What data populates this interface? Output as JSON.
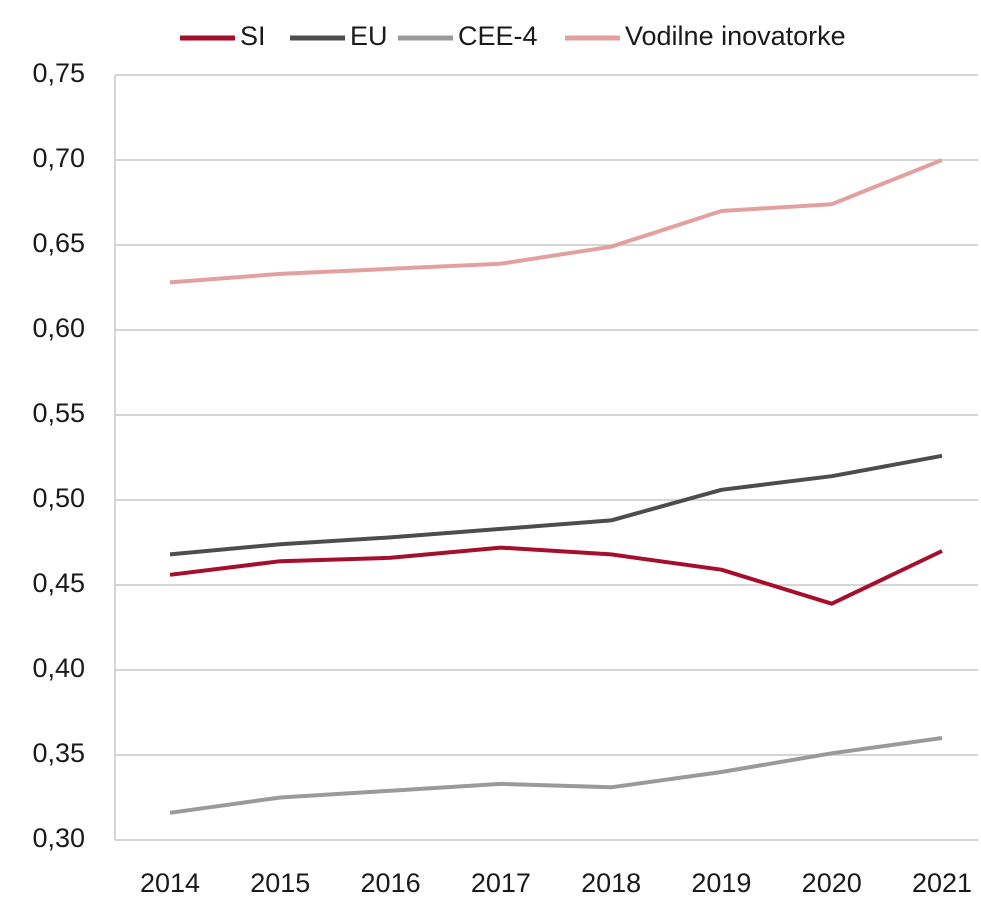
{
  "chart_data": {
    "type": "line",
    "categories": [
      "2014",
      "2015",
      "2016",
      "2017",
      "2018",
      "2019",
      "2020",
      "2021"
    ],
    "series": [
      {
        "name": "SI",
        "color": "#a50f2d",
        "values": [
          0.456,
          0.464,
          0.466,
          0.472,
          0.468,
          0.459,
          0.439,
          0.47
        ]
      },
      {
        "name": "EU",
        "color": "#4d4d4d",
        "values": [
          0.468,
          0.474,
          0.478,
          0.483,
          0.488,
          0.506,
          0.514,
          0.526
        ]
      },
      {
        "name": "CEE-4",
        "color": "#9a9a9a",
        "values": [
          0.316,
          0.325,
          0.329,
          0.333,
          0.331,
          0.34,
          0.351,
          0.36
        ]
      },
      {
        "name": "Vodilne inovatorke",
        "color": "#e3a0a0",
        "values": [
          0.628,
          0.633,
          0.636,
          0.639,
          0.649,
          0.67,
          0.674,
          0.7
        ]
      }
    ],
    "ylim": [
      0.3,
      0.75
    ],
    "yticks": [
      {
        "value": 0.3,
        "label": "0,30"
      },
      {
        "value": 0.35,
        "label": "0,35"
      },
      {
        "value": 0.4,
        "label": "0,40"
      },
      {
        "value": 0.45,
        "label": "0,45"
      },
      {
        "value": 0.5,
        "label": "0,50"
      },
      {
        "value": 0.55,
        "label": "0,55"
      },
      {
        "value": 0.6,
        "label": "0,60"
      },
      {
        "value": 0.65,
        "label": "0,65"
      },
      {
        "value": 0.7,
        "label": "0,70"
      },
      {
        "value": 0.75,
        "label": "0,75"
      }
    ],
    "grid": true,
    "legend": "top"
  }
}
